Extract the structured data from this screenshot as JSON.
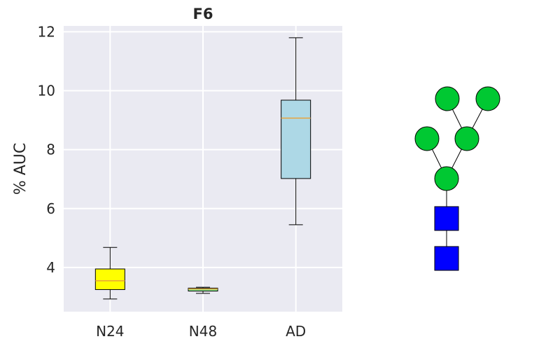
{
  "chart_data": {
    "type": "box",
    "title": "F6",
    "xlabel": "",
    "ylabel": "% AUC",
    "ylim": [
      2.5,
      12.2
    ],
    "yticks": [
      4,
      6,
      8,
      10,
      12
    ],
    "grid": true,
    "categories": [
      "N24",
      "N48",
      "AD"
    ],
    "boxes": [
      {
        "label": "N24",
        "min": 2.93,
        "q1": 3.25,
        "median": 3.55,
        "q3": 3.95,
        "max": 4.68,
        "color": "#ffff00",
        "median_color": "#e8a33c"
      },
      {
        "label": "N48",
        "min": 3.12,
        "q1": 3.2,
        "median": 3.27,
        "q3": 3.3,
        "max": 3.33,
        "color": "#90ee90",
        "median_color": "#e8a33c"
      },
      {
        "label": "AD",
        "min": 5.45,
        "q1": 7.02,
        "median": 9.07,
        "q3": 9.68,
        "max": 11.8,
        "color": "#add8e6",
        "median_color": "#e8a33c"
      }
    ]
  },
  "glycan": {
    "symbols": [
      {
        "shape": "circle",
        "color": "#00c832"
      },
      {
        "shape": "circle",
        "color": "#00c832"
      },
      {
        "shape": "circle",
        "color": "#00c832"
      },
      {
        "shape": "circle",
        "color": "#00c832"
      },
      {
        "shape": "circle",
        "color": "#00c832"
      },
      {
        "shape": "square",
        "color": "#0000ff"
      },
      {
        "shape": "square",
        "color": "#0000ff"
      }
    ]
  }
}
